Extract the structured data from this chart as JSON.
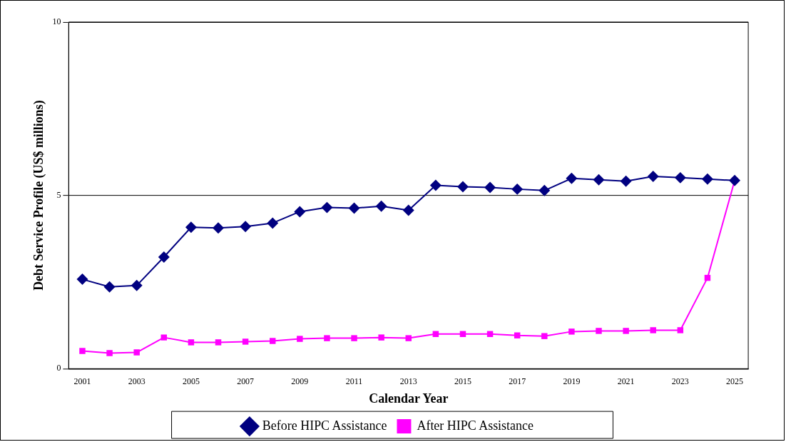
{
  "chart_data": {
    "type": "line",
    "xlabel": "Calendar Year",
    "ylabel": "Debt Service Profile (US$ millions)",
    "categories": [
      "2001",
      null,
      "2003",
      null,
      "2005",
      null,
      "2007",
      null,
      "2009",
      null,
      "2011",
      null,
      "2013",
      null,
      "2015",
      null,
      "2017",
      null,
      "2019",
      null,
      "2021",
      null,
      "2023",
      null,
      "2025"
    ],
    "series": [
      {
        "name": "Before HIPC Assistance",
        "color": "#000080",
        "marker": "diamond",
        "values": [
          2.58,
          2.36,
          2.4,
          3.22,
          4.08,
          4.06,
          4.1,
          4.2,
          4.53,
          4.65,
          4.63,
          4.69,
          4.57,
          5.29,
          5.25,
          5.23,
          5.18,
          5.14,
          5.49,
          5.45,
          5.41,
          5.55,
          5.51,
          5.47,
          5.43
        ]
      },
      {
        "name": "After HIPC Assistance",
        "color": "#ff00ff",
        "marker": "square",
        "values": [
          0.51,
          0.45,
          0.47,
          0.9,
          0.76,
          0.76,
          0.78,
          0.8,
          0.86,
          0.88,
          0.88,
          0.9,
          0.88,
          1.0,
          1.0,
          1.0,
          0.96,
          0.94,
          1.07,
          1.09,
          1.09,
          1.11,
          1.11,
          2.62,
          5.43
        ]
      }
    ],
    "ylim": [
      0,
      10
    ],
    "yticks": [
      0,
      5,
      10
    ],
    "grid": "y",
    "legend": "bottom",
    "line_style": "solid"
  }
}
